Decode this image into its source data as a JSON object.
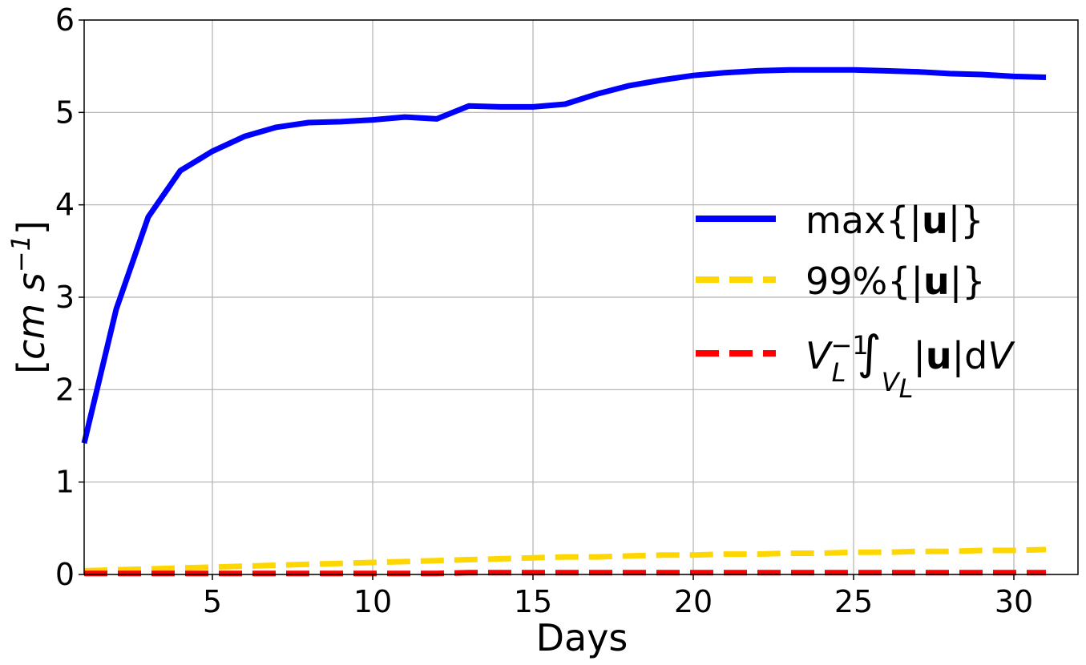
{
  "chart_data": {
    "type": "line",
    "xlabel": "Days",
    "ylabel": "[cm s⁻¹]",
    "xlim": [
      1,
      32
    ],
    "ylim": [
      0,
      6
    ],
    "x_ticks": [
      5,
      10,
      15,
      20,
      25,
      30
    ],
    "y_ticks": [
      0,
      1,
      2,
      3,
      4,
      5,
      6
    ],
    "grid": true,
    "legend_position": "center-right",
    "x": [
      1,
      2,
      3,
      4,
      5,
      6,
      7,
      8,
      9,
      10,
      11,
      12,
      13,
      14,
      15,
      16,
      17,
      18,
      19,
      20,
      21,
      22,
      23,
      24,
      25,
      26,
      27,
      28,
      29,
      30,
      31
    ],
    "series": [
      {
        "name": "max{|u|}",
        "color": "#0000ff",
        "style": "solid",
        "values": [
          1.42,
          2.87,
          3.87,
          4.37,
          4.58,
          4.74,
          4.84,
          4.89,
          4.9,
          4.92,
          4.95,
          4.93,
          5.07,
          5.06,
          5.06,
          5.09,
          5.2,
          5.29,
          5.35,
          5.4,
          5.43,
          5.45,
          5.46,
          5.46,
          5.46,
          5.45,
          5.44,
          5.42,
          5.41,
          5.39,
          5.38
        ]
      },
      {
        "name": "99%{|u|}",
        "color": "#ffd700",
        "style": "dashed",
        "values": [
          0.04,
          0.05,
          0.06,
          0.07,
          0.08,
          0.09,
          0.1,
          0.11,
          0.12,
          0.13,
          0.14,
          0.15,
          0.16,
          0.17,
          0.18,
          0.19,
          0.19,
          0.2,
          0.21,
          0.21,
          0.22,
          0.22,
          0.23,
          0.23,
          0.24,
          0.24,
          0.25,
          0.25,
          0.26,
          0.26,
          0.27
        ]
      },
      {
        "name": "V_L^-1 ∫_V_L |u| dV",
        "color": "#ff0000",
        "style": "dashed",
        "values": [
          0.01,
          0.01,
          0.01,
          0.01,
          0.01,
          0.01,
          0.01,
          0.01,
          0.01,
          0.01,
          0.01,
          0.01,
          0.02,
          0.02,
          0.02,
          0.02,
          0.02,
          0.02,
          0.02,
          0.02,
          0.02,
          0.02,
          0.02,
          0.02,
          0.02,
          0.02,
          0.02,
          0.02,
          0.02,
          0.02,
          0.02
        ]
      }
    ]
  }
}
